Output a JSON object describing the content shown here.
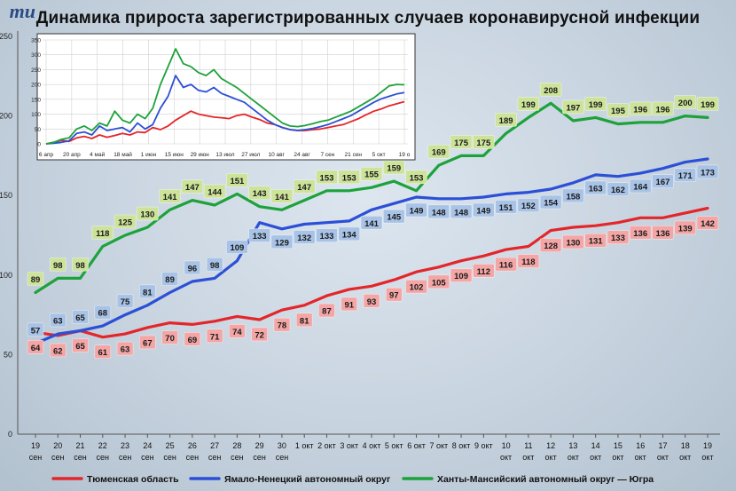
{
  "title": "Динамика прироста зарегистрированных случаев коронавирусной инфекции",
  "logo_text": "mu",
  "colors": {
    "tyumen": "#e3262a",
    "yanao": "#2b4fd6",
    "hmao": "#1da23a",
    "tyumen_label": "#f4a6a6",
    "yanao_label": "#a8c3e6",
    "hmao_label": "#cde39a"
  },
  "chart_data": [
    {
      "type": "line",
      "title": "",
      "ylim": [
        0,
        250
      ],
      "yticks": [
        "0",
        "50",
        "100",
        "150",
        "200",
        "250"
      ],
      "grid": false,
      "legend": "bottom",
      "categories": [
        [
          "19",
          "сен"
        ],
        [
          "20",
          "сен"
        ],
        [
          "21",
          "сен"
        ],
        [
          "22",
          "сен"
        ],
        [
          "23",
          "сен"
        ],
        [
          "24",
          "сен"
        ],
        [
          "25",
          "сен"
        ],
        [
          "26",
          "сен"
        ],
        [
          "27",
          "сен"
        ],
        [
          "28",
          "сен"
        ],
        [
          "29",
          "сен"
        ],
        [
          "30",
          "сен"
        ],
        [
          "1 окт",
          ""
        ],
        [
          "2 окт",
          ""
        ],
        [
          "3 окт",
          ""
        ],
        [
          "4 окт",
          ""
        ],
        [
          "5 окт",
          ""
        ],
        [
          "6 окт",
          ""
        ],
        [
          "7 окт",
          ""
        ],
        [
          "8 окт",
          ""
        ],
        [
          "9 окт",
          ""
        ],
        [
          "10",
          "окт"
        ],
        [
          "11",
          "окт"
        ],
        [
          "12",
          "окт"
        ],
        [
          "13",
          "окт"
        ],
        [
          "14",
          "окт"
        ],
        [
          "15",
          "окт"
        ],
        [
          "16",
          "окт"
        ],
        [
          "17",
          "окт"
        ],
        [
          "18",
          "окт"
        ],
        [
          "19",
          "окт"
        ]
      ],
      "series": [
        {
          "name": "Тюменская область",
          "key": "tyumen",
          "values": [
            64,
            62,
            65,
            61,
            63,
            67,
            70,
            69,
            71,
            74,
            72,
            78,
            81,
            87,
            91,
            93,
            97,
            102,
            105,
            109,
            112,
            116,
            118,
            128,
            130,
            131,
            133,
            136,
            136,
            139,
            142
          ]
        },
        {
          "name": "Ямало-Ненецкий автономный округ",
          "key": "yanao",
          "values": [
            57,
            63,
            65,
            68,
            75,
            81,
            89,
            96,
            98,
            109,
            133,
            129,
            132,
            133,
            134,
            141,
            145,
            149,
            148,
            148,
            149,
            151,
            152,
            154,
            158,
            163,
            162,
            164,
            167,
            171,
            173
          ]
        },
        {
          "name": "Ханты-Мансийский автономный округ — Югра",
          "key": "hmao",
          "values": [
            89,
            98,
            98,
            118,
            125,
            130,
            141,
            147,
            144,
            151,
            143,
            141,
            147,
            153,
            153,
            155,
            159,
            153,
            169,
            175,
            175,
            189,
            199,
            208,
            197,
            199,
            195,
            196,
            196,
            200,
            199
          ]
        }
      ]
    },
    {
      "type": "line",
      "title": "",
      "ylim": [
        0,
        350
      ],
      "yticks": [
        "0",
        "50",
        "100",
        "150",
        "200",
        "250",
        "300",
        "350"
      ],
      "xticks": [
        "6 апр",
        "20 апр",
        "4 май",
        "18 май",
        "1 июн",
        "15 июн",
        "29 июн",
        "13 июл",
        "27 июл",
        "10 авг",
        "24 авг",
        "7 сен",
        "21 сен",
        "5 окт",
        "19 о"
      ],
      "grid": true,
      "series": [
        {
          "key": "tyumen",
          "values": [
            0,
            5,
            12,
            8,
            20,
            25,
            18,
            30,
            22,
            28,
            35,
            30,
            40,
            38,
            55,
            48,
            60,
            80,
            95,
            110,
            100,
            95,
            90,
            88,
            85,
            95,
            100,
            90,
            82,
            70,
            65,
            55,
            48,
            45,
            45,
            48,
            50,
            55,
            60,
            65,
            75,
            85,
            98,
            110,
            118,
            128,
            135,
            142
          ]
        },
        {
          "key": "yanao",
          "values": [
            0,
            2,
            5,
            10,
            35,
            40,
            30,
            60,
            45,
            50,
            55,
            40,
            70,
            50,
            65,
            120,
            160,
            230,
            190,
            200,
            180,
            175,
            190,
            170,
            160,
            150,
            140,
            120,
            100,
            80,
            65,
            55,
            48,
            45,
            48,
            52,
            58,
            65,
            75,
            85,
            95,
            110,
            125,
            140,
            152,
            160,
            168,
            173
          ]
        },
        {
          "key": "hmao",
          "values": [
            0,
            5,
            15,
            20,
            50,
            60,
            45,
            70,
            60,
            110,
            80,
            70,
            100,
            85,
            120,
            200,
            260,
            320,
            270,
            260,
            240,
            230,
            250,
            220,
            205,
            190,
            170,
            150,
            130,
            110,
            90,
            70,
            60,
            58,
            62,
            68,
            75,
            80,
            90,
            100,
            110,
            125,
            140,
            155,
            175,
            195,
            200,
            199
          ]
        }
      ]
    }
  ]
}
